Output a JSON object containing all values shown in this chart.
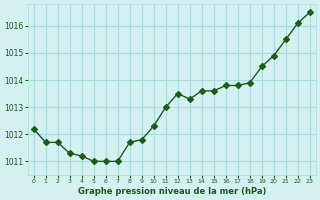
{
  "x": [
    0,
    1,
    2,
    3,
    4,
    5,
    6,
    7,
    8,
    9,
    10,
    11,
    12,
    13,
    14,
    15,
    16,
    17,
    18,
    19,
    20,
    21,
    22,
    23
  ],
  "y": [
    1012.2,
    1011.7,
    1011.7,
    1011.3,
    1011.2,
    1011.0,
    1011.0,
    1011.0,
    1011.7,
    1011.8,
    1012.3,
    1013.0,
    1013.5,
    1013.3,
    1013.6,
    1013.6,
    1013.8,
    1013.8,
    1013.9,
    1014.5,
    1014.9,
    1015.5,
    1016.1,
    1016.5
  ],
  "line_color": "#1a5c1a",
  "marker": "D",
  "marker_size": 3,
  "bg_color": "#d4f0f0",
  "grid_color": "#aadddd",
  "xlabel": "Graphe pression niveau de la mer (hPa)",
  "xlabel_color": "#1a5c1a",
  "tick_color": "#1a5c1a",
  "yticks": [
    1011,
    1012,
    1013,
    1014,
    1015,
    1016
  ],
  "ylim": [
    1010.5,
    1016.8
  ],
  "xlim": [
    -0.5,
    23.5
  ],
  "xtick_labels": [
    "0",
    "1",
    "2",
    "3",
    "4",
    "5",
    "6",
    "7",
    "8",
    "9",
    "10",
    "11",
    "12",
    "13",
    "14",
    "15",
    "16",
    "17",
    "18",
    "19",
    "20",
    "21",
    "22",
    "23"
  ]
}
